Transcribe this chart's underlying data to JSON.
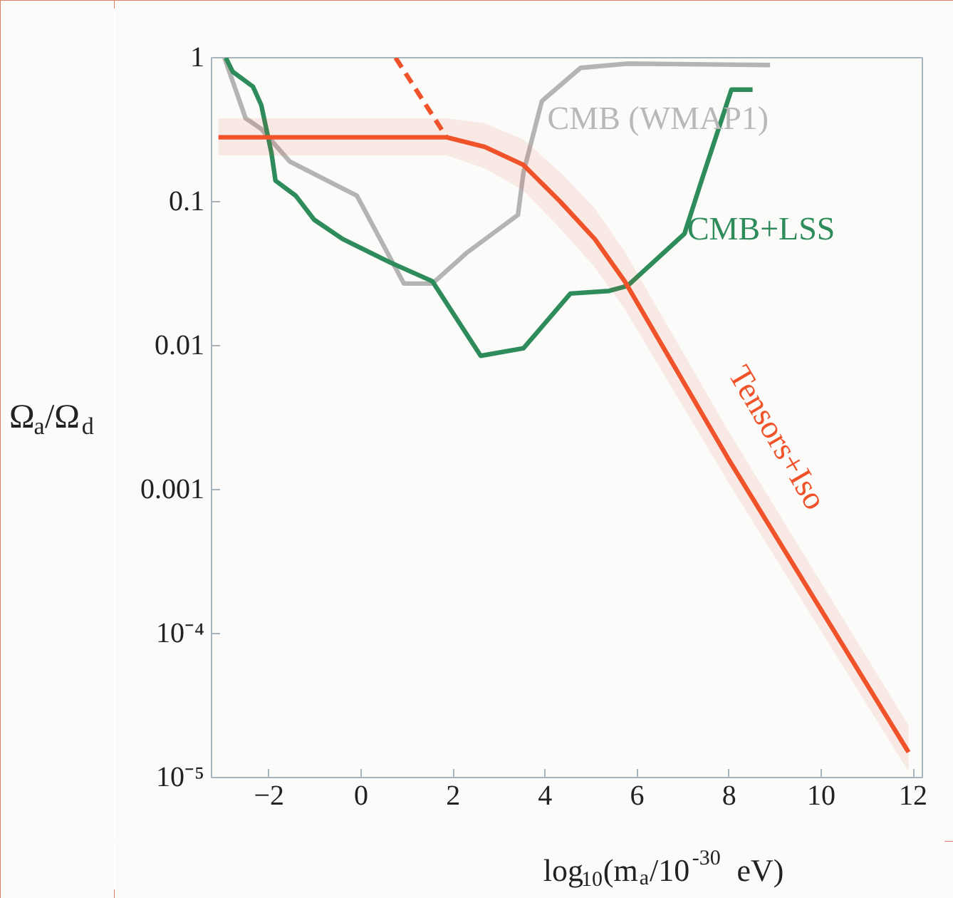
{
  "chart_data": {
    "type": "line",
    "xlabel": "log$_{10}$(m$_{a}$/10$^{-30}$ eV)",
    "ylabel": "Ω$_{a}$/Ω$_{d}$",
    "log": "y",
    "grid": false,
    "legend": false,
    "marker": "none",
    "xlim": [
      -3.25,
      12.2
    ],
    "ylim": [
      1e-05,
      1
    ],
    "xticks": [
      {
        "value": -2,
        "label": "−2"
      },
      0,
      2,
      4,
      6,
      8,
      10,
      12
    ],
    "yticks": [
      {
        "value": 1e-05,
        "label": "10⁻⁵"
      },
      {
        "value": 0.0001,
        "label": "10⁻⁴"
      },
      0.001,
      0.01,
      0.1,
      1
    ],
    "series": [
      {
        "name": "CMB (WMAP1)",
        "color": "#b4b4b4",
        "x": [
          -2.97,
          -2.51,
          -2.17,
          -1.55,
          -0.09,
          0.93,
          1.55,
          2.29,
          3.41,
          3.53,
          3.93,
          4.77,
          5.79,
          8.89
        ],
        "values": [
          1,
          0.38,
          0.32,
          0.19,
          0.11,
          0.027,
          0.027,
          0.044,
          0.081,
          0.16,
          0.5,
          0.85,
          0.91,
          0.89
        ]
      },
      {
        "name": "CMB+LSS",
        "color": "#2e8b5a",
        "x": [
          -2.94,
          -2.79,
          -2.35,
          -2.17,
          -1.95,
          -1.86,
          -1.42,
          -1.02,
          -0.4,
          0.62,
          1.55,
          2.6,
          3.53,
          4.55,
          5.39,
          5.79,
          7.03,
          7.43,
          8.05,
          8.51
        ],
        "values": [
          1,
          0.8,
          0.63,
          0.47,
          0.22,
          0.14,
          0.11,
          0.075,
          0.055,
          0.038,
          0.028,
          0.0085,
          0.0096,
          0.023,
          0.024,
          0.026,
          0.06,
          0.15,
          0.6,
          0.6
        ]
      },
      {
        "name": "Tensors+Iso",
        "color": "#f0522a",
        "x": [
          -3.1,
          1.86,
          2.69,
          3.53,
          4.33,
          5.08,
          5.73,
          8,
          11.9
        ],
        "values": [
          0.28,
          0.28,
          0.24,
          0.18,
          0.1,
          0.055,
          0.028,
          0.0016,
          1.5e-05
        ],
        "lower": [
          0.21,
          0.21,
          0.17,
          0.12,
          0.065,
          0.035,
          0.018,
          0.0011,
          1.1e-05
        ],
        "upper": [
          0.38,
          0.38,
          0.35,
          0.27,
          0.16,
          0.09,
          0.045,
          0.0025,
          2.3e-05
        ]
      },
      {
        "color": "#f0522a",
        "line_style": "dashed",
        "x": [
          0.75,
          1.86
        ],
        "values": [
          1,
          0.28
        ]
      }
    ]
  }
}
